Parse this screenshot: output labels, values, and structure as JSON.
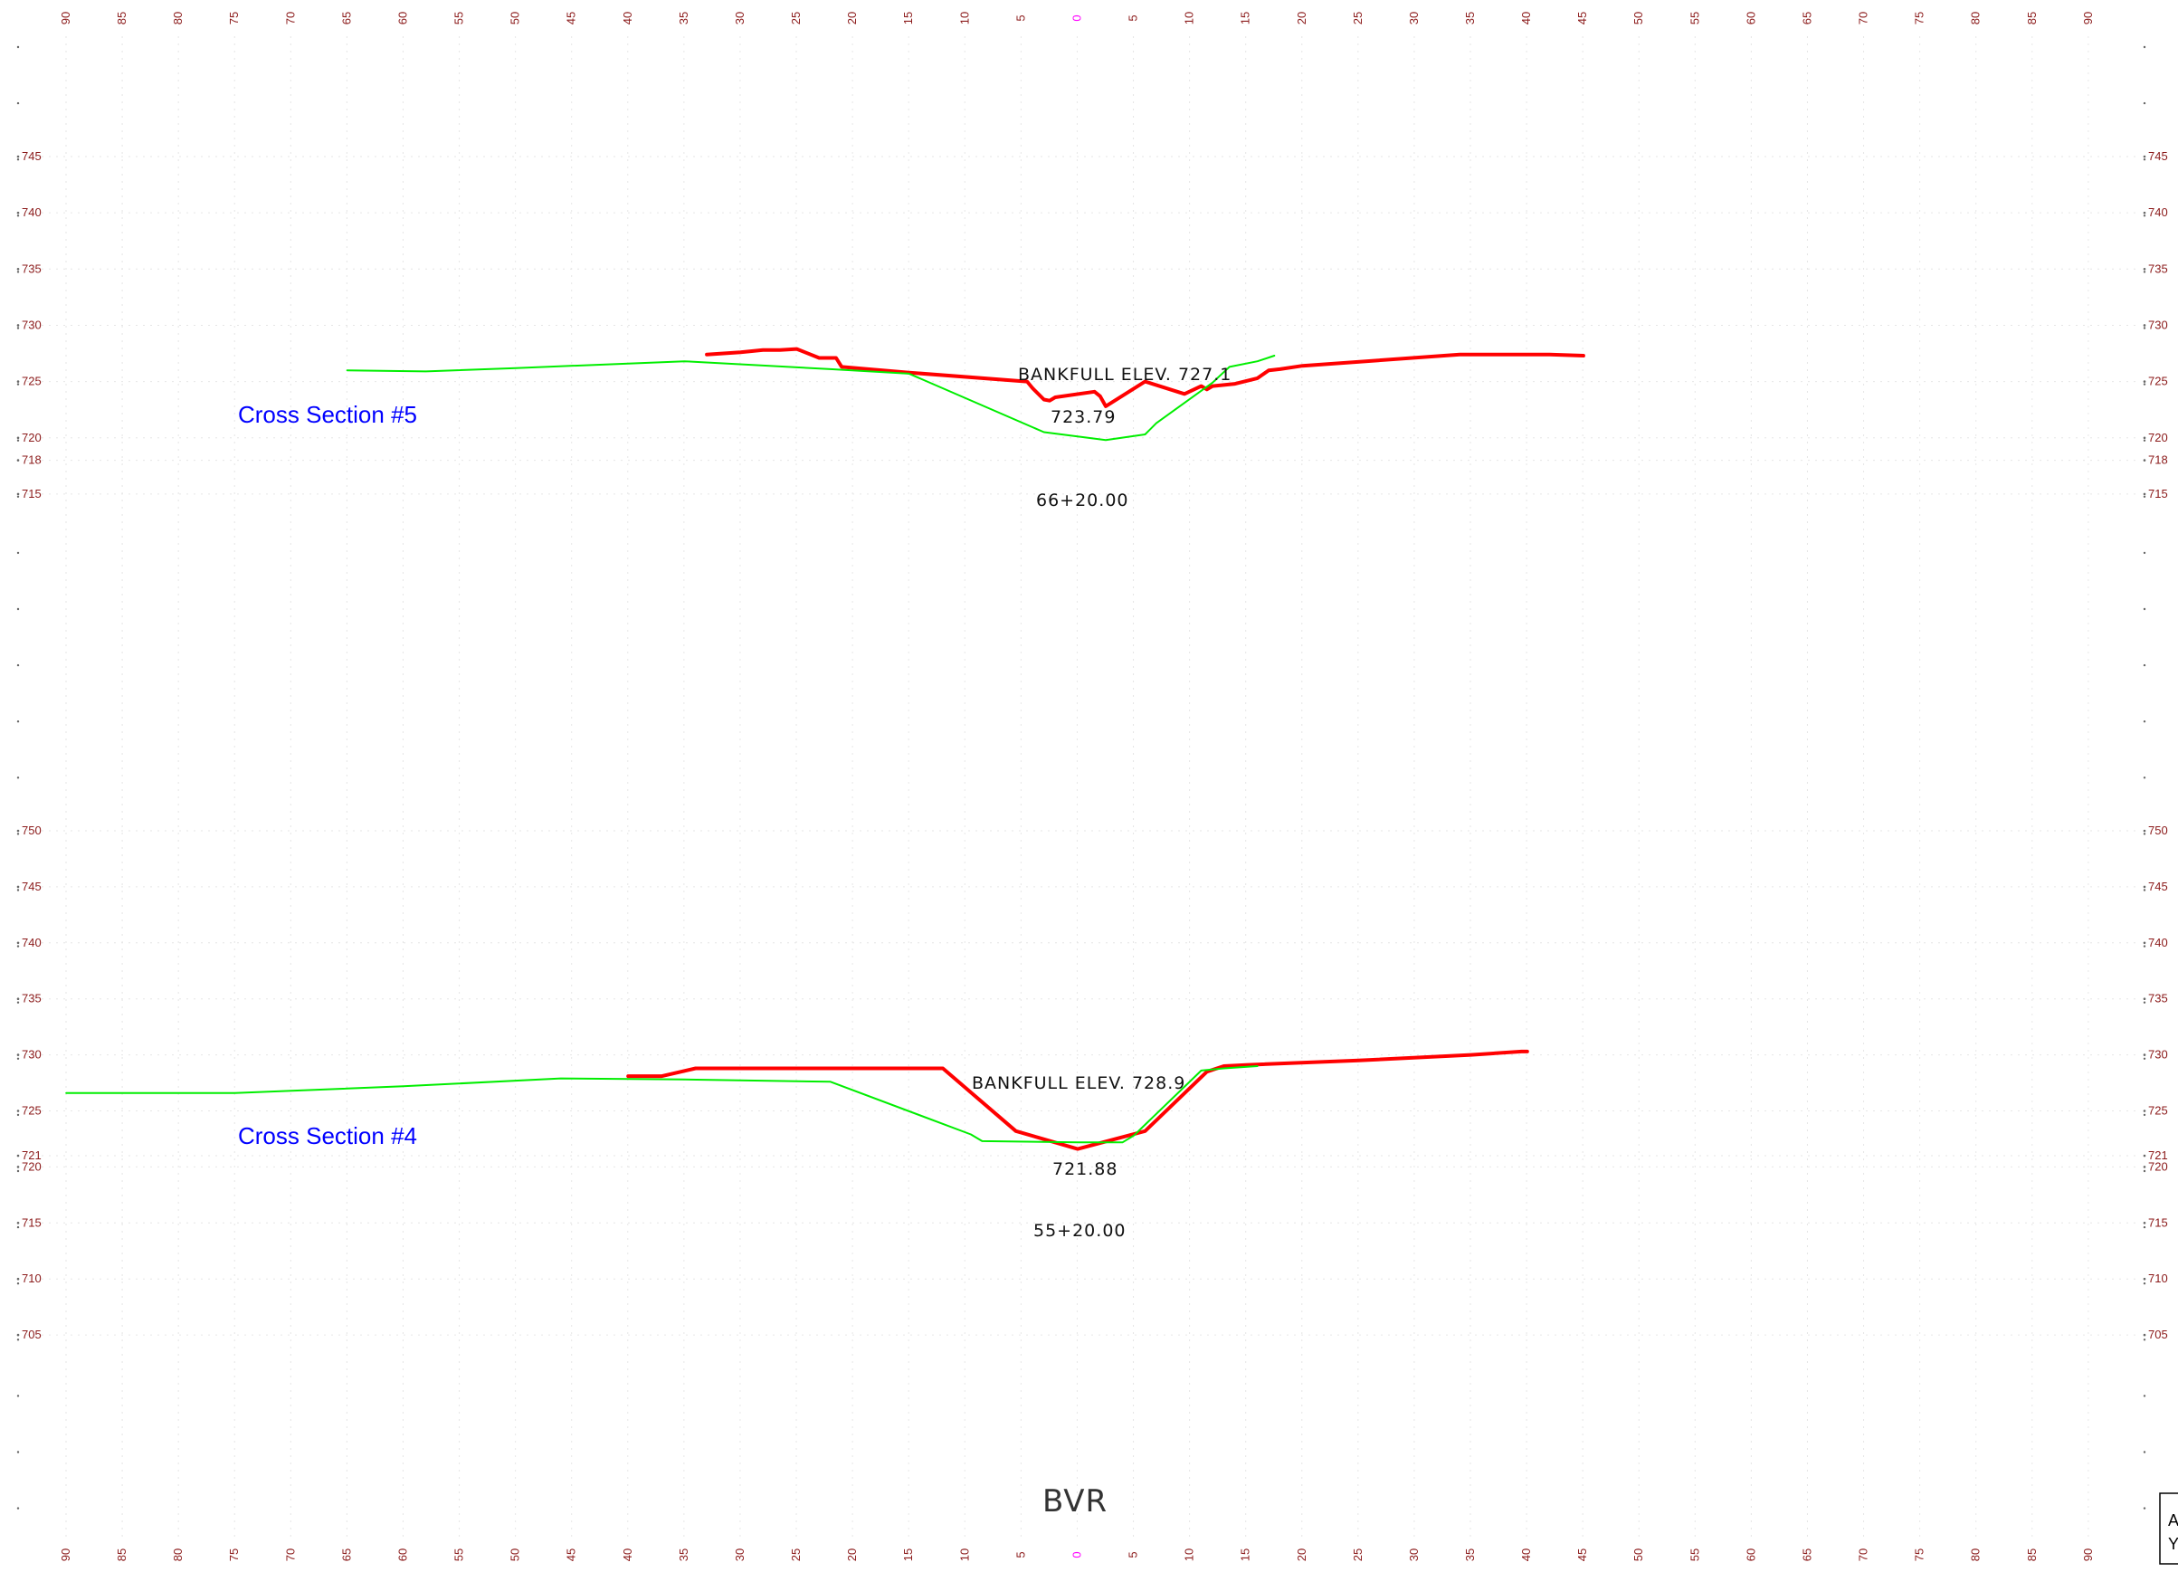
{
  "footer_label": "BVR",
  "legend": {
    "lines": [
      "A",
      "Y"
    ]
  },
  "chart_data": [
    {
      "type": "line",
      "title": "Cross Section #5",
      "station": "66+20.00",
      "bankfull_label": "BANKFULL ELEV.  727.1",
      "thalweg_label": "723.79",
      "x_ticks": [
        90,
        85,
        80,
        75,
        70,
        65,
        60,
        55,
        50,
        45,
        40,
        35,
        30,
        25,
        20,
        15,
        10,
        5,
        0,
        5,
        10,
        15,
        20,
        25,
        30,
        35,
        40,
        45,
        50,
        55,
        60,
        65,
        70,
        75,
        80,
        85,
        90
      ],
      "y_ticks": [
        745,
        740,
        735,
        730,
        725,
        720,
        718,
        715
      ],
      "ylim": [
        715,
        745
      ],
      "xlim": [
        -90,
        90
      ],
      "grid": true,
      "series": [
        {
          "color": "#ff0000",
          "x": [
            -33,
            -30,
            -28,
            -26.5,
            -25,
            -23,
            -21.5,
            -21,
            -15,
            -4.5,
            -4,
            -3,
            -2.5,
            -2,
            1.5,
            2,
            2.5,
            6,
            9.5,
            11,
            11.5,
            12,
            14,
            16,
            17,
            18,
            20,
            34,
            40,
            42,
            45
          ],
          "y": [
            727.4,
            727.6,
            727.8,
            727.8,
            727.9,
            727.1,
            727.1,
            726.3,
            725.8,
            725.0,
            724.4,
            723.4,
            723.3,
            723.6,
            724.1,
            723.7,
            722.8,
            725.0,
            723.9,
            724.6,
            724.3,
            724.6,
            724.8,
            725.3,
            726.0,
            726.1,
            726.4,
            727.4,
            727.4,
            727.4,
            727.3
          ]
        },
        {
          "color": "#00ee00",
          "x": [
            -65,
            -58,
            -50,
            -40,
            -35,
            -22,
            -15,
            -3,
            2.5,
            6,
            7,
            12,
            13.5,
            16,
            17.5
          ],
          "y": [
            726.0,
            725.9,
            726.2,
            726.6,
            726.8,
            726.1,
            725.7,
            720.5,
            719.8,
            720.3,
            721.3,
            724.9,
            726.3,
            726.8,
            727.3
          ]
        }
      ]
    },
    {
      "type": "line",
      "title": "Cross Section #4",
      "station": "55+20.00",
      "bankfull_label": "BANKFULL ELEV.  728.9",
      "thalweg_label": "721.88",
      "x_ticks": [
        90,
        85,
        80,
        75,
        70,
        65,
        60,
        55,
        50,
        45,
        40,
        35,
        30,
        25,
        20,
        15,
        10,
        5,
        0,
        5,
        10,
        15,
        20,
        25,
        30,
        35,
        40,
        45,
        50,
        55,
        60,
        65,
        70,
        75,
        80,
        85,
        90
      ],
      "y_ticks": [
        750,
        745,
        740,
        735,
        730,
        725,
        721,
        720,
        715,
        710,
        705
      ],
      "ylim": [
        705,
        750
      ],
      "xlim": [
        -90,
        90
      ],
      "grid": true,
      "series": [
        {
          "color": "#ff0000",
          "x": [
            -40,
            -37,
            -34,
            -28,
            -12,
            -5.5,
            0,
            6,
            11.5,
            13,
            15,
            25,
            35,
            39.5,
            40
          ],
          "y": [
            728.1,
            728.1,
            728.8,
            728.8,
            728.8,
            723.2,
            721.6,
            723.2,
            728.5,
            729.0,
            729.1,
            729.5,
            730.0,
            730.3,
            730.3
          ]
        },
        {
          "color": "#00ee00",
          "x": [
            -90,
            -75,
            -60,
            -46,
            -35,
            -22,
            -9.5,
            -8.5,
            0,
            4,
            5,
            11,
            13,
            16
          ],
          "y": [
            726.6,
            726.6,
            727.2,
            727.9,
            727.8,
            727.6,
            722.9,
            722.3,
            722.2,
            722.2,
            722.8,
            728.6,
            728.8,
            729.0
          ]
        }
      ]
    }
  ]
}
